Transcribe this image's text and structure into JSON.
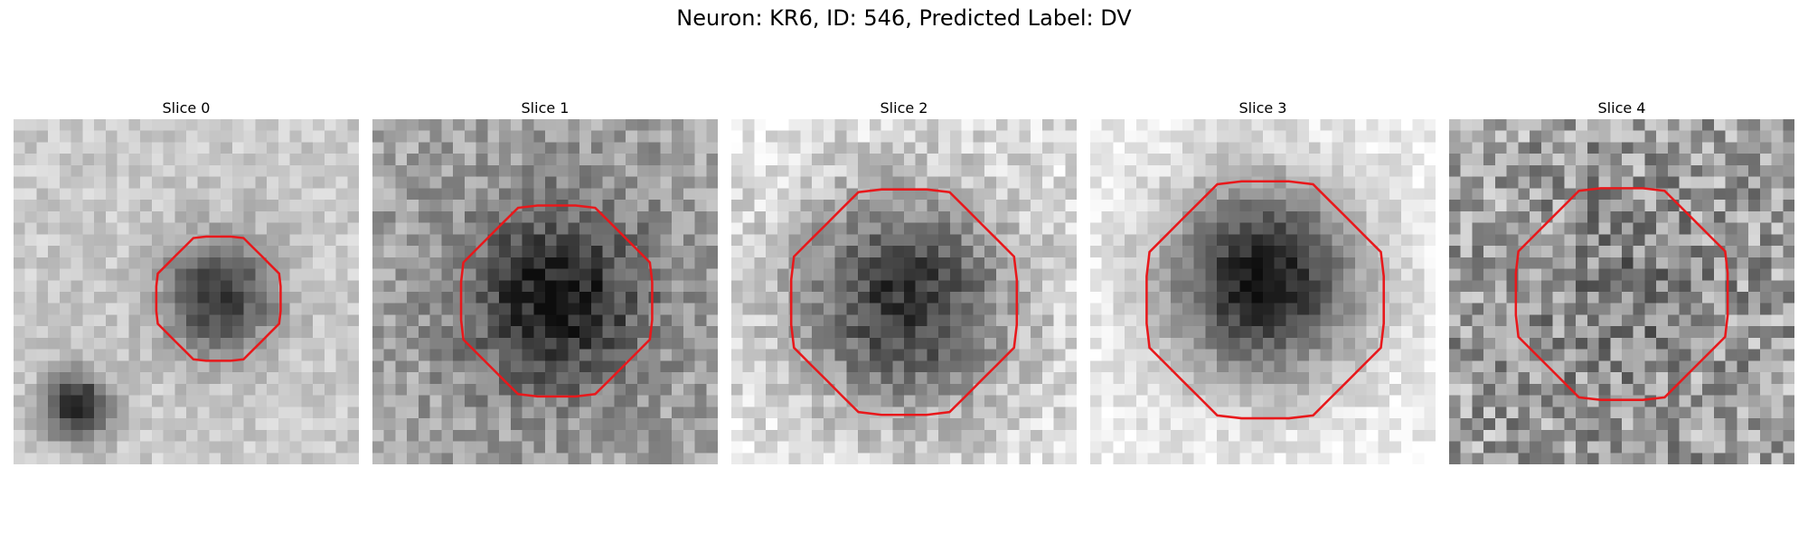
{
  "figure": {
    "title": "Neuron: KR6, ID: 546, Predicted Label: DV"
  },
  "grid_size": 30,
  "outline_color": "#e8181b",
  "colormap": "grayscale (dark = high intensity)",
  "panels": [
    {
      "title": "Slice 0",
      "blob": {
        "cx": 17.8,
        "cy": 15.4,
        "r": 4.6
      },
      "outline_radius": 5.4,
      "outline_center": [
        17.8,
        15.6
      ],
      "second_blob": {
        "cx": 5.5,
        "cy": 25.0,
        "r": 2.8
      },
      "noise": 0.1,
      "bg": 0.22,
      "peak": 0.62,
      "seed": 11
    },
    {
      "title": "Slice 1",
      "blob": {
        "cx": 16.0,
        "cy": 15.5,
        "r": 7.5
      },
      "outline_radius": 8.3,
      "outline_center": [
        16.0,
        15.8
      ],
      "noise": 0.16,
      "bg": 0.38,
      "peak": 0.58,
      "seed": 23
    },
    {
      "title": "Slice 2",
      "blob": {
        "cx": 15.0,
        "cy": 15.8,
        "r": 8.8
      },
      "outline_radius": 9.8,
      "outline_center": [
        15.0,
        15.9
      ],
      "noise": 0.15,
      "bg": 0.12,
      "peak": 0.72,
      "seed": 37
    },
    {
      "title": "Slice 3",
      "blob": {
        "cx": 15.0,
        "cy": 14.0,
        "r": 8.0
      },
      "outline_radius": 10.3,
      "outline_center": [
        15.2,
        15.7
      ],
      "noise": 0.1,
      "bg": 0.06,
      "peak": 0.9,
      "seed": 41
    },
    {
      "title": "Slice 4",
      "blob": {
        "cx": 15.0,
        "cy": 15.3,
        "r": 7.0
      },
      "outline_radius": 9.2,
      "outline_center": [
        15.0,
        15.2
      ],
      "noise": 0.26,
      "bg": 0.4,
      "peak": 0.15,
      "seed": 53
    }
  ]
}
